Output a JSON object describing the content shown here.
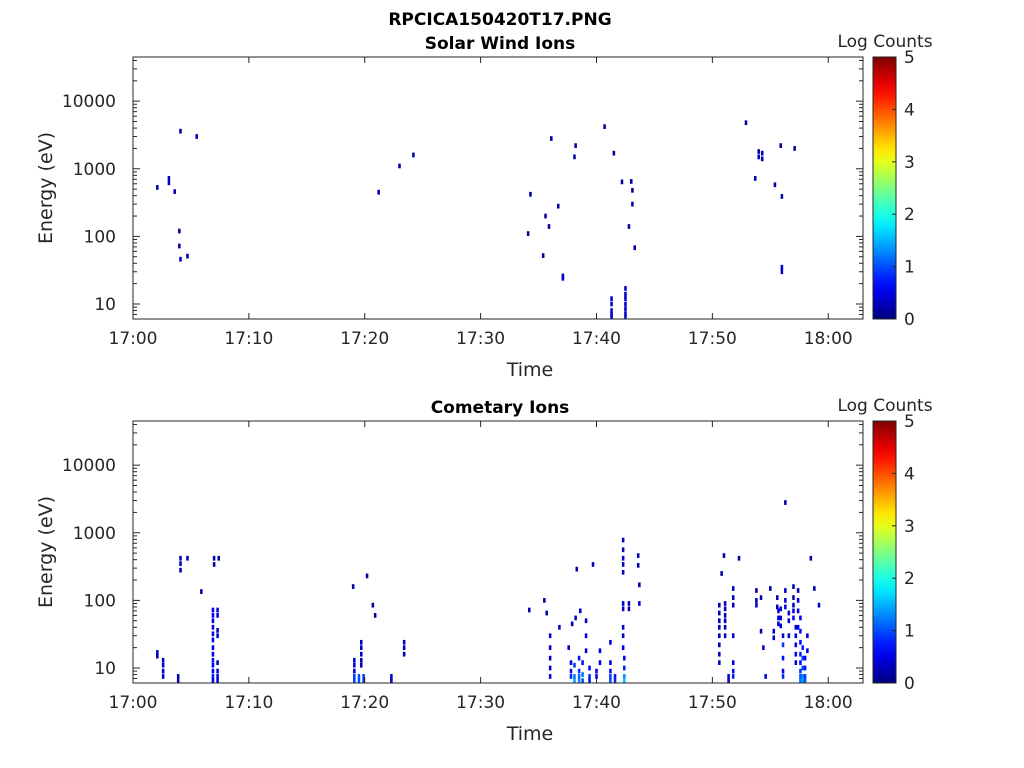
{
  "figure_title": "RPCICA150420T17.PNG",
  "chart_data": [
    {
      "type": "heatmap",
      "title": "Solar Wind Ions",
      "xlabel": "Time",
      "ylabel": "Energy (eV)",
      "x_ticks": [
        "17:00",
        "17:10",
        "17:20",
        "17:30",
        "17:40",
        "17:50",
        "18:00"
      ],
      "x_range_min": [
        0,
        63
      ],
      "y_scale": "log",
      "y_ticks": [
        "10",
        "100",
        "1000",
        "10000"
      ],
      "ylim": [
        6,
        45000
      ],
      "colorbar": {
        "label": "Log Counts",
        "range": [
          0,
          5
        ],
        "ticks": [
          "0",
          "1",
          "2",
          "3",
          "4",
          "5"
        ],
        "colormap": "jet"
      },
      "cells": [
        [
          2.1,
          530,
          0.2
        ],
        [
          3.1,
          620,
          0.3
        ],
        [
          3.1,
          720,
          0.3
        ],
        [
          3.6,
          460,
          0.2
        ],
        [
          4.1,
          3600,
          0.2
        ],
        [
          5.5,
          3000,
          0.2
        ],
        [
          4.0,
          120,
          0.2
        ],
        [
          4.0,
          72,
          0.2
        ],
        [
          4.1,
          46,
          0.3
        ],
        [
          4.7,
          51,
          0.2
        ],
        [
          21.2,
          450,
          0.2
        ],
        [
          23.0,
          1100,
          0.2
        ],
        [
          24.2,
          1600,
          0.2
        ],
        [
          34.3,
          420,
          0.2
        ],
        [
          34.1,
          110,
          0.2
        ],
        [
          36.1,
          2800,
          0.2
        ],
        [
          35.6,
          200,
          0.2
        ],
        [
          35.9,
          140,
          0.2
        ],
        [
          36.7,
          280,
          0.2
        ],
        [
          35.4,
          52,
          0.2
        ],
        [
          37.1,
          26,
          0.3
        ],
        [
          37.1,
          24,
          0.3
        ],
        [
          38.2,
          2200,
          0.2
        ],
        [
          38.1,
          1500,
          0.2
        ],
        [
          40.7,
          4200,
          0.2
        ],
        [
          41.5,
          1700,
          0.2
        ],
        [
          42.2,
          640,
          0.2
        ],
        [
          43.0,
          650,
          0.2
        ],
        [
          43.1,
          480,
          0.2
        ],
        [
          43.1,
          300,
          0.2
        ],
        [
          42.8,
          140,
          0.2
        ],
        [
          43.3,
          68,
          0.2
        ],
        [
          41.3,
          12,
          0.4
        ],
        [
          41.3,
          10,
          0.4
        ],
        [
          41.3,
          8,
          0.4
        ],
        [
          41.3,
          7,
          0.4
        ],
        [
          41.3,
          6.3,
          0.4
        ],
        [
          42.5,
          17,
          0.4
        ],
        [
          42.5,
          14,
          0.4
        ],
        [
          42.5,
          12,
          0.4
        ],
        [
          42.5,
          10,
          0.4
        ],
        [
          42.5,
          8.5,
          0.4
        ],
        [
          42.5,
          7.2,
          0.4
        ],
        [
          42.5,
          6.3,
          0.4
        ],
        [
          52.9,
          4800,
          0.2
        ],
        [
          54.0,
          1800,
          0.3
        ],
        [
          54.0,
          1500,
          0.3
        ],
        [
          54.3,
          1700,
          0.2
        ],
        [
          54.3,
          1400,
          0.2
        ],
        [
          55.9,
          2200,
          0.2
        ],
        [
          57.1,
          2000,
          0.2
        ],
        [
          53.7,
          720,
          0.2
        ],
        [
          55.4,
          580,
          0.2
        ],
        [
          56.0,
          390,
          0.2
        ],
        [
          56.0,
          35,
          0.4
        ],
        [
          56.0,
          30,
          0.4
        ]
      ]
    },
    {
      "type": "heatmap",
      "title": "Cometary Ions",
      "xlabel": "Time",
      "ylabel": "Energy (eV)",
      "x_ticks": [
        "17:00",
        "17:10",
        "17:20",
        "17:30",
        "17:40",
        "17:50",
        "18:00"
      ],
      "x_range_min": [
        0,
        63
      ],
      "y_scale": "log",
      "y_ticks": [
        "10",
        "100",
        "1000",
        "10000"
      ],
      "ylim": [
        6,
        45000
      ],
      "colorbar": {
        "label": "Log Counts",
        "range": [
          0,
          5
        ],
        "ticks": [
          "0",
          "1",
          "2",
          "3",
          "4",
          "5"
        ],
        "colormap": "jet"
      },
      "cells": [
        [
          2.1,
          17,
          0.3
        ],
        [
          2.1,
          15,
          0.3
        ],
        [
          2.6,
          13,
          0.3
        ],
        [
          2.6,
          11,
          0.3
        ],
        [
          2.6,
          9,
          0.3
        ],
        [
          2.6,
          7.5,
          0.3
        ],
        [
          3.9,
          7.5,
          0.3
        ],
        [
          3.9,
          6.5,
          0.3
        ],
        [
          4.1,
          420,
          0.3
        ],
        [
          4.1,
          350,
          0.3
        ],
        [
          4.1,
          280,
          0.3
        ],
        [
          4.7,
          420,
          0.2
        ],
        [
          5.9,
          135,
          0.2
        ],
        [
          7.0,
          420,
          0.2
        ],
        [
          7.0,
          340,
          0.2
        ],
        [
          7.4,
          420,
          0.2
        ],
        [
          6.9,
          72,
          0.6
        ],
        [
          6.9,
          60,
          0.6
        ],
        [
          6.9,
          50,
          0.5
        ],
        [
          6.9,
          40,
          0.5
        ],
        [
          6.9,
          32,
          0.6
        ],
        [
          6.9,
          26,
          0.5
        ],
        [
          6.9,
          20,
          0.6
        ],
        [
          6.9,
          16,
          0.6
        ],
        [
          6.9,
          13,
          0.7
        ],
        [
          6.9,
          11,
          0.6
        ],
        [
          6.9,
          9,
          0.6
        ],
        [
          6.9,
          7.5,
          0.7
        ],
        [
          6.9,
          6.5,
          0.6
        ],
        [
          7.3,
          72,
          0.5
        ],
        [
          7.3,
          60,
          0.6
        ],
        [
          7.3,
          36,
          0.4
        ],
        [
          7.3,
          30,
          0.4
        ],
        [
          7.3,
          12,
          0.4
        ],
        [
          7.3,
          9,
          0.5
        ],
        [
          7.3,
          7.5,
          0.5
        ],
        [
          7.3,
          6.5,
          0.5
        ],
        [
          19.0,
          160,
          0.2
        ],
        [
          20.2,
          230,
          0.2
        ],
        [
          20.7,
          85,
          0.2
        ],
        [
          20.9,
          60,
          0.2
        ],
        [
          19.1,
          13,
          0.4
        ],
        [
          19.1,
          11,
          0.4
        ],
        [
          19.1,
          9,
          0.4
        ],
        [
          19.1,
          7.5,
          0.9
        ],
        [
          19.1,
          6.5,
          0.9
        ],
        [
          19.5,
          7.5,
          1.0
        ],
        [
          19.5,
          6.5,
          1.0
        ],
        [
          19.9,
          7.5,
          0.9
        ],
        [
          19.9,
          6.5,
          0.9
        ],
        [
          19.7,
          24,
          0.3
        ],
        [
          19.7,
          20,
          0.3
        ],
        [
          19.7,
          16,
          0.3
        ],
        [
          19.7,
          13,
          0.3
        ],
        [
          19.7,
          11,
          0.3
        ],
        [
          22.3,
          7.5,
          0.3
        ],
        [
          22.3,
          6.5,
          0.3
        ],
        [
          23.4,
          24,
          0.3
        ],
        [
          23.4,
          20,
          0.3
        ],
        [
          23.4,
          16,
          0.3
        ],
        [
          34.2,
          72,
          0.2
        ],
        [
          35.5,
          100,
          0.2
        ],
        [
          35.7,
          65,
          0.2
        ],
        [
          36.0,
          30,
          0.4
        ],
        [
          36.0,
          20,
          0.4
        ],
        [
          36.0,
          14,
          0.4
        ],
        [
          36.0,
          10,
          0.4
        ],
        [
          36.0,
          7.5,
          0.4
        ],
        [
          36.8,
          40,
          0.3
        ],
        [
          37.6,
          20,
          0.4
        ],
        [
          37.9,
          45,
          0.3
        ],
        [
          38.2,
          55,
          0.3
        ],
        [
          38.6,
          70,
          0.4
        ],
        [
          38.3,
          290,
          0.2
        ],
        [
          37.8,
          12,
          0.6
        ],
        [
          37.8,
          9,
          0.7
        ],
        [
          37.8,
          7.5,
          0.8
        ],
        [
          38.1,
          11,
          0.9
        ],
        [
          38.1,
          7.5,
          1.2
        ],
        [
          38.1,
          6.5,
          1.4
        ],
        [
          38.5,
          14,
          0.7
        ],
        [
          38.5,
          9,
          0.9
        ],
        [
          38.5,
          7.5,
          1.1
        ],
        [
          38.5,
          6.5,
          1.3
        ],
        [
          38.8,
          12,
          0.7
        ],
        [
          38.8,
          8,
          1.2
        ],
        [
          38.8,
          6.5,
          1.0
        ],
        [
          39.1,
          50,
          0.4
        ],
        [
          39.1,
          30,
          0.5
        ],
        [
          39.1,
          18,
          0.4
        ],
        [
          39.4,
          10,
          0.6
        ],
        [
          39.4,
          7.5,
          0.8
        ],
        [
          39.4,
          6.5,
          0.7
        ],
        [
          39.7,
          340,
          0.2
        ],
        [
          40.0,
          9,
          0.5
        ],
        [
          40.0,
          7.5,
          0.6
        ],
        [
          40.3,
          18,
          0.4
        ],
        [
          40.3,
          12,
          0.5
        ],
        [
          41.2,
          24,
          0.4
        ],
        [
          41.2,
          12,
          0.5
        ],
        [
          41.2,
          9,
          0.7
        ],
        [
          41.2,
          7.5,
          0.9
        ],
        [
          41.2,
          6.5,
          1.0
        ],
        [
          41.6,
          7.5,
          0.7
        ],
        [
          41.6,
          6.5,
          0.8
        ],
        [
          42.3,
          780,
          0.3
        ],
        [
          42.3,
          560,
          0.3
        ],
        [
          42.3,
          420,
          0.4
        ],
        [
          42.3,
          340,
          0.3
        ],
        [
          42.3,
          260,
          0.3
        ],
        [
          42.3,
          90,
          0.4
        ],
        [
          42.3,
          75,
          0.3
        ],
        [
          42.3,
          40,
          0.4
        ],
        [
          42.3,
          30,
          0.4
        ],
        [
          42.3,
          20,
          0.5
        ],
        [
          42.4,
          14,
          0.6
        ],
        [
          42.4,
          10,
          0.8
        ],
        [
          42.4,
          7.5,
          1.3
        ],
        [
          42.4,
          6.5,
          1.6
        ],
        [
          42.8,
          90,
          0.3
        ],
        [
          42.8,
          75,
          0.3
        ],
        [
          43.6,
          460,
          0.2
        ],
        [
          43.6,
          330,
          0.2
        ],
        [
          43.7,
          170,
          0.2
        ],
        [
          43.7,
          90,
          0.3
        ],
        [
          51.0,
          460,
          0.2
        ],
        [
          50.6,
          85,
          0.3
        ],
        [
          50.6,
          65,
          0.3
        ],
        [
          50.6,
          50,
          0.3
        ],
        [
          50.6,
          40,
          0.3
        ],
        [
          50.6,
          30,
          0.3
        ],
        [
          50.6,
          22,
          0.3
        ],
        [
          50.6,
          16,
          0.3
        ],
        [
          50.6,
          12,
          0.3
        ],
        [
          51.1,
          90,
          0.3
        ],
        [
          51.1,
          75,
          0.3
        ],
        [
          51.1,
          60,
          0.3
        ],
        [
          51.1,
          50,
          0.3
        ],
        [
          51.1,
          40,
          0.3
        ],
        [
          51.1,
          30,
          0.3
        ],
        [
          51.8,
          150,
          0.3
        ],
        [
          51.8,
          110,
          0.3
        ],
        [
          51.8,
          85,
          0.3
        ],
        [
          51.8,
          30,
          0.3
        ],
        [
          51.8,
          12,
          0.5
        ],
        [
          51.8,
          9,
          0.7
        ],
        [
          51.8,
          7.5,
          0.8
        ],
        [
          50.8,
          250,
          0.2
        ],
        [
          51.4,
          7.5,
          0.4
        ],
        [
          51.4,
          6.5,
          0.4
        ],
        [
          52.3,
          420,
          0.2
        ],
        [
          53.8,
          140,
          0.2
        ],
        [
          53.8,
          100,
          0.3
        ],
        [
          53.8,
          85,
          0.3
        ],
        [
          54.2,
          110,
          0.2
        ],
        [
          54.2,
          35,
          0.3
        ],
        [
          54.4,
          20,
          0.4
        ],
        [
          54.6,
          7.5,
          0.4
        ],
        [
          55.0,
          150,
          0.2
        ],
        [
          55.3,
          35,
          0.3
        ],
        [
          55.3,
          28,
          0.3
        ],
        [
          55.6,
          110,
          0.2
        ],
        [
          55.6,
          80,
          0.3
        ],
        [
          55.7,
          70,
          0.5
        ],
        [
          55.7,
          55,
          0.5
        ],
        [
          55.7,
          45,
          0.4
        ],
        [
          55.9,
          75,
          0.5
        ],
        [
          55.9,
          55,
          0.5
        ],
        [
          55.9,
          42,
          0.4
        ],
        [
          56.1,
          30,
          0.5
        ],
        [
          56.1,
          22,
          0.9
        ],
        [
          56.1,
          14,
          0.7
        ],
        [
          56.1,
          9,
          0.5
        ],
        [
          56.1,
          7.5,
          0.8
        ],
        [
          56.3,
          2800,
          0.2
        ],
        [
          56.3,
          140,
          0.3
        ],
        [
          56.3,
          100,
          0.4
        ],
        [
          56.3,
          80,
          0.5
        ],
        [
          56.6,
          65,
          0.4
        ],
        [
          56.6,
          50,
          0.5
        ],
        [
          56.6,
          30,
          0.4
        ],
        [
          57.0,
          160,
          0.3
        ],
        [
          57.0,
          110,
          0.3
        ],
        [
          57.0,
          85,
          0.4
        ],
        [
          57.0,
          70,
          0.5
        ],
        [
          57.0,
          55,
          0.5
        ],
        [
          57.2,
          40,
          0.5
        ],
        [
          57.2,
          30,
          0.5
        ],
        [
          57.2,
          22,
          0.6
        ],
        [
          57.2,
          16,
          0.6
        ],
        [
          57.2,
          12,
          0.5
        ],
        [
          57.4,
          140,
          0.3
        ],
        [
          57.4,
          100,
          0.4
        ],
        [
          57.4,
          70,
          0.5
        ],
        [
          57.4,
          40,
          0.6
        ],
        [
          57.6,
          55,
          0.6
        ],
        [
          57.6,
          35,
          0.7
        ],
        [
          57.6,
          24,
          0.7
        ],
        [
          57.6,
          16,
          0.8
        ],
        [
          57.6,
          12,
          0.7
        ],
        [
          57.6,
          9,
          0.9
        ],
        [
          57.6,
          7.5,
          1.0
        ],
        [
          57.6,
          6.5,
          1.2
        ],
        [
          57.8,
          20,
          0.8
        ],
        [
          57.8,
          14,
          0.9
        ],
        [
          57.8,
          10,
          1.0
        ],
        [
          57.8,
          7.5,
          1.3
        ],
        [
          57.8,
          6.5,
          1.4
        ],
        [
          58.0,
          14,
          0.6
        ],
        [
          58.0,
          10,
          0.7
        ],
        [
          58.0,
          7.5,
          0.9
        ],
        [
          58.0,
          6.5,
          1.0
        ],
        [
          58.2,
          30,
          0.4
        ],
        [
          58.2,
          18,
          0.4
        ],
        [
          58.5,
          420,
          0.2
        ],
        [
          58.8,
          150,
          0.2
        ],
        [
          59.2,
          85,
          0.3
        ]
      ]
    }
  ]
}
